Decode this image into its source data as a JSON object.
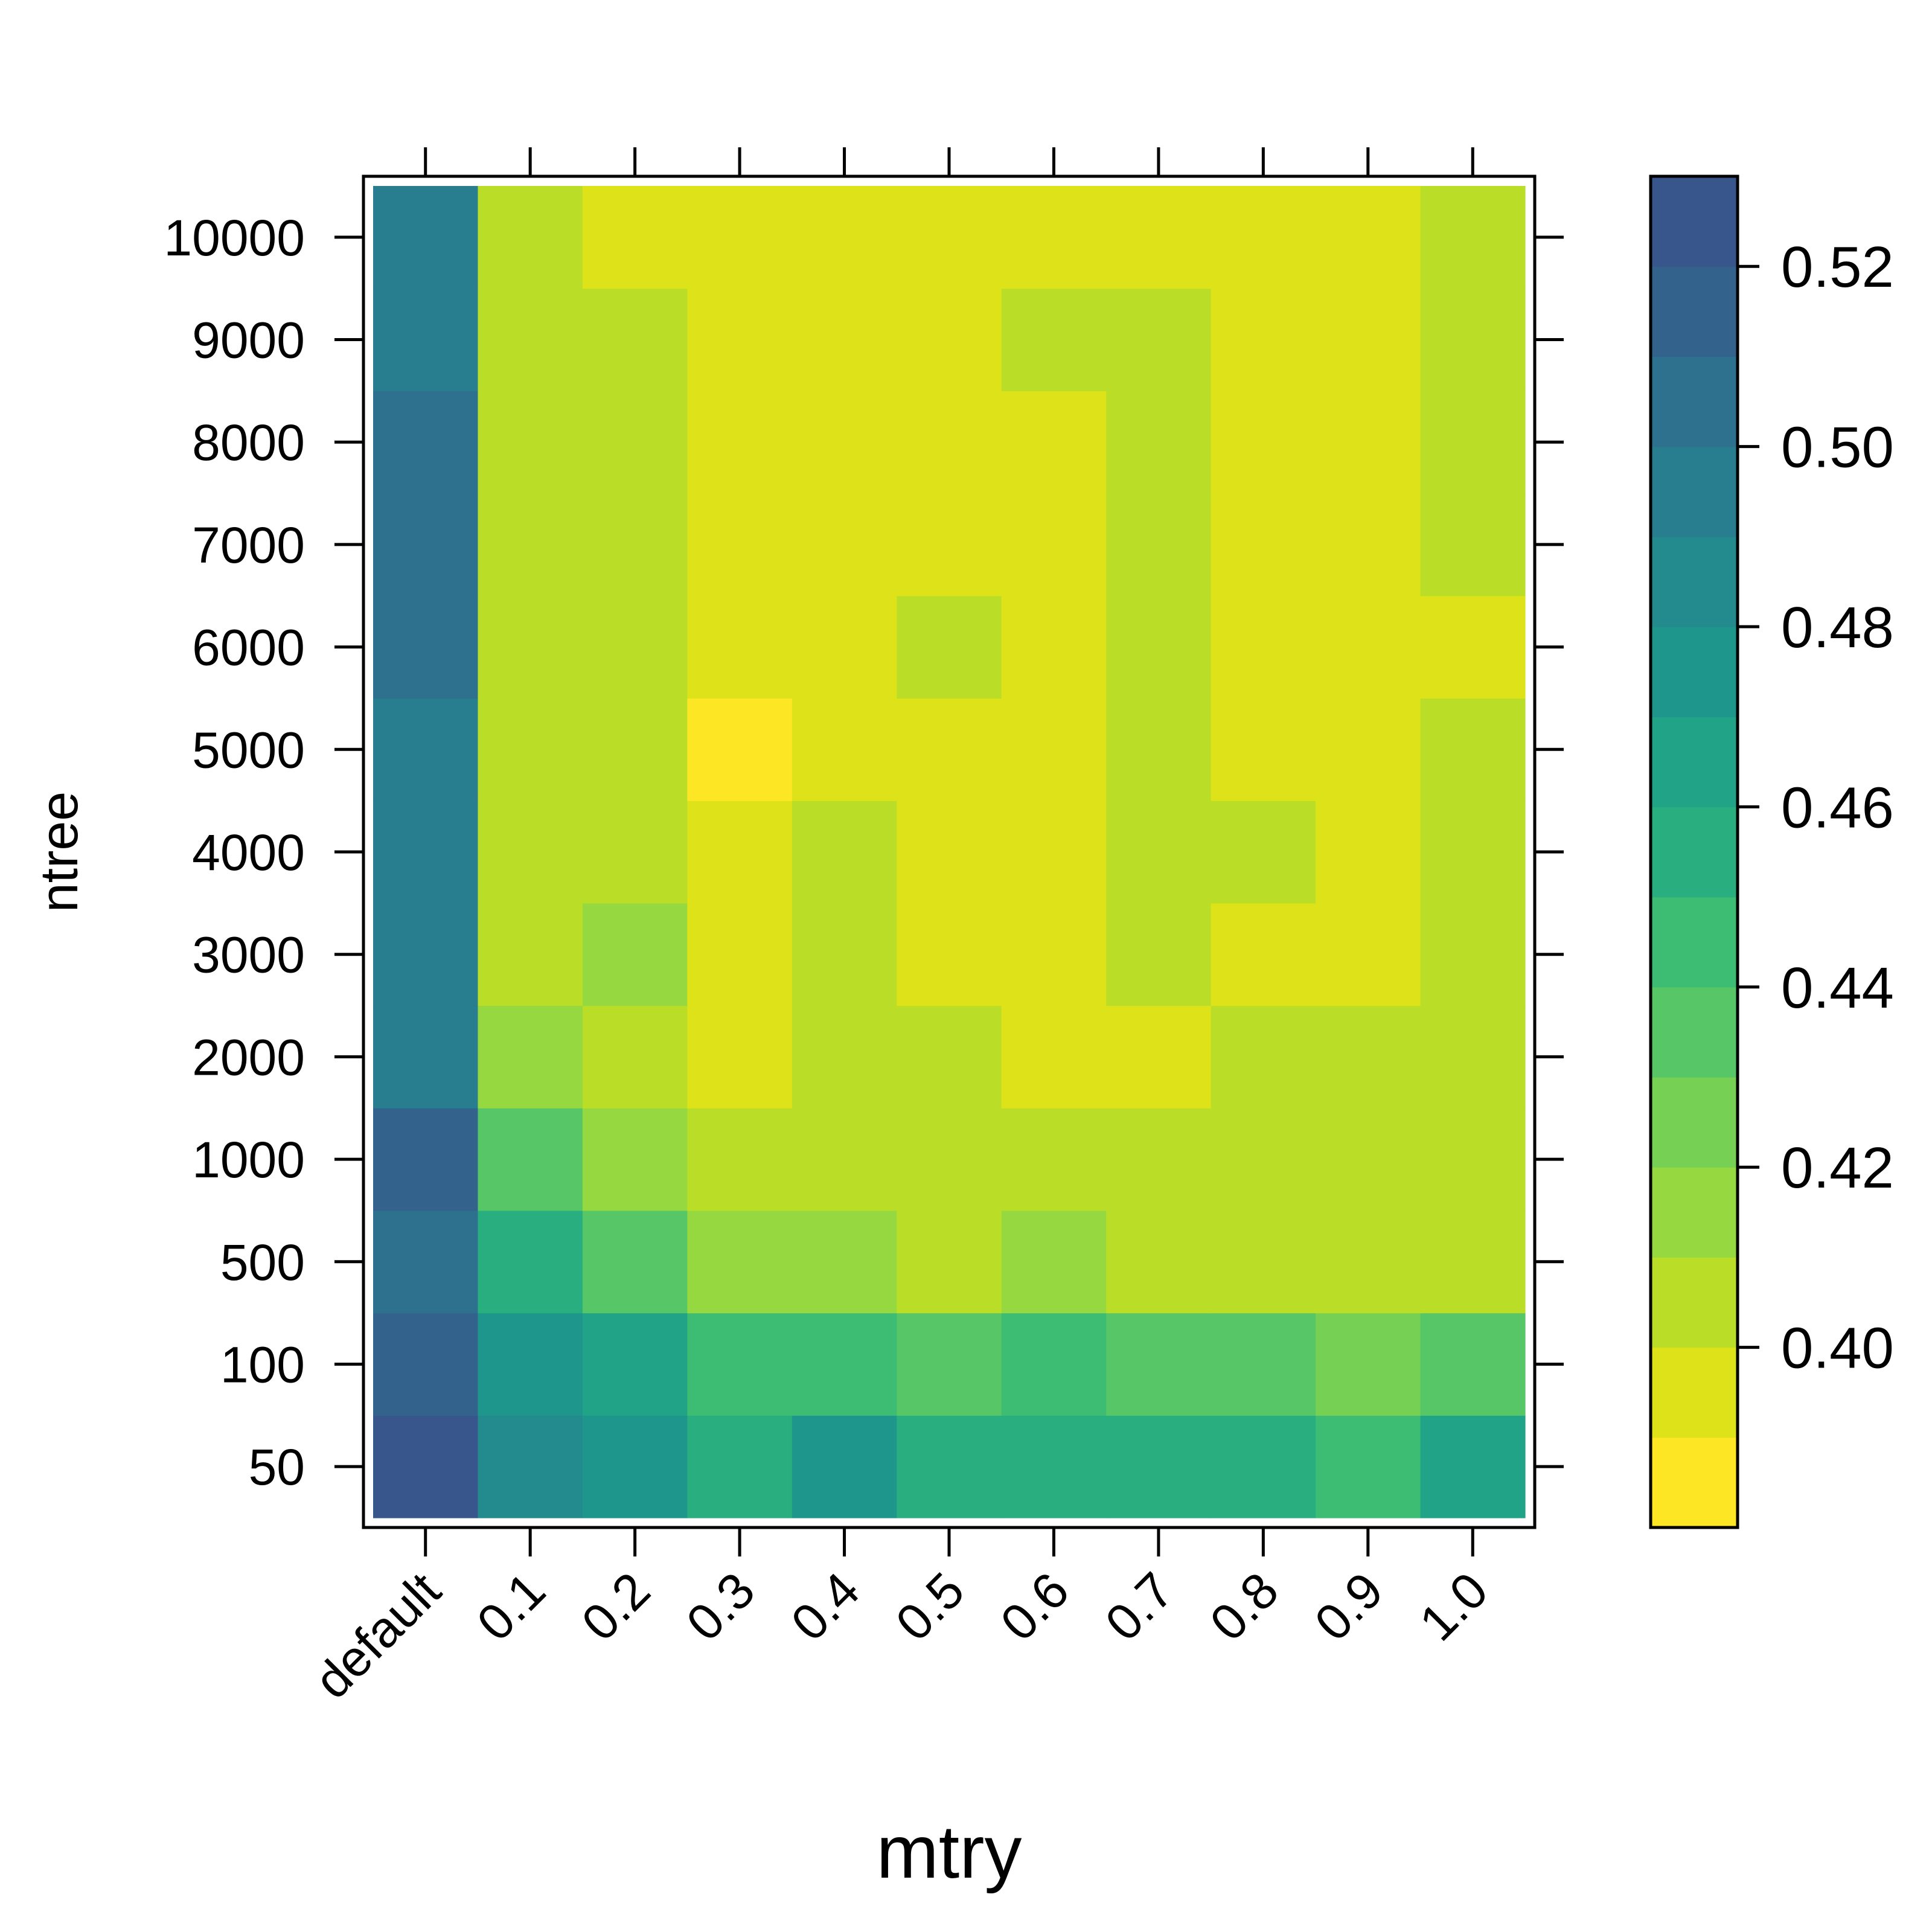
{
  "chart_data": {
    "type": "heatmap",
    "title": "",
    "xlabel": "mtry",
    "ylabel": "ntree",
    "x_categories": [
      "default",
      "0.1",
      "0.2",
      "0.3",
      "0.4",
      "0.5",
      "0.6",
      "0.7",
      "0.8",
      "0.9",
      "1.0"
    ],
    "y_categories": [
      "50",
      "100",
      "500",
      "1000",
      "2000",
      "3000",
      "4000",
      "5000",
      "6000",
      "7000",
      "8000",
      "9000",
      "10000"
    ],
    "values": [
      [
        0.522,
        0.487,
        0.475,
        0.455,
        0.475,
        0.455,
        0.455,
        0.455,
        0.455,
        0.445,
        0.465
      ],
      [
        0.512,
        0.475,
        0.465,
        0.445,
        0.445,
        0.435,
        0.445,
        0.435,
        0.435,
        0.425,
        0.435
      ],
      [
        0.502,
        0.455,
        0.435,
        0.415,
        0.415,
        0.405,
        0.415,
        0.405,
        0.405,
        0.405,
        0.405
      ],
      [
        0.512,
        0.435,
        0.415,
        0.405,
        0.405,
        0.405,
        0.405,
        0.405,
        0.405,
        0.405,
        0.405
      ],
      [
        0.492,
        0.415,
        0.405,
        0.395,
        0.405,
        0.405,
        0.395,
        0.395,
        0.405,
        0.405,
        0.405
      ],
      [
        0.492,
        0.405,
        0.415,
        0.395,
        0.405,
        0.395,
        0.395,
        0.405,
        0.395,
        0.395,
        0.405
      ],
      [
        0.492,
        0.405,
        0.405,
        0.395,
        0.405,
        0.395,
        0.395,
        0.405,
        0.405,
        0.395,
        0.405
      ],
      [
        0.492,
        0.405,
        0.405,
        0.385,
        0.395,
        0.395,
        0.395,
        0.405,
        0.395,
        0.395,
        0.405
      ],
      [
        0.502,
        0.405,
        0.405,
        0.395,
        0.395,
        0.405,
        0.395,
        0.405,
        0.395,
        0.395,
        0.395
      ],
      [
        0.502,
        0.405,
        0.405,
        0.395,
        0.395,
        0.395,
        0.395,
        0.405,
        0.395,
        0.395,
        0.405
      ],
      [
        0.502,
        0.405,
        0.405,
        0.395,
        0.395,
        0.395,
        0.395,
        0.405,
        0.395,
        0.395,
        0.405
      ],
      [
        0.492,
        0.405,
        0.405,
        0.395,
        0.395,
        0.395,
        0.405,
        0.405,
        0.395,
        0.395,
        0.405
      ],
      [
        0.492,
        0.405,
        0.395,
        0.395,
        0.395,
        0.395,
        0.395,
        0.395,
        0.395,
        0.395,
        0.405
      ]
    ],
    "color_scale": {
      "breaks": [
        0.38,
        0.39,
        0.4,
        0.41,
        0.42,
        0.43,
        0.44,
        0.45,
        0.46,
        0.47,
        0.48,
        0.49,
        0.5,
        0.51,
        0.52,
        0.53
      ],
      "colors": [
        "#FDE725",
        "#DDE318",
        "#BADE28",
        "#95D840",
        "#75D054",
        "#56C667",
        "#3DBC74",
        "#29AF7F",
        "#20A386",
        "#1F968B",
        "#238A8D",
        "#287D8E",
        "#2D718E",
        "#33638D",
        "#39568C",
        "#404688"
      ],
      "range": [
        0.38,
        0.53
      ],
      "tick_values": [
        0.4,
        0.42,
        0.44,
        0.46,
        0.48,
        0.5,
        0.52
      ],
      "tick_labels": [
        "0.40",
        "0.42",
        "0.44",
        "0.46",
        "0.48",
        "0.50",
        "0.52"
      ]
    },
    "grid": false,
    "legend_position": "right"
  }
}
